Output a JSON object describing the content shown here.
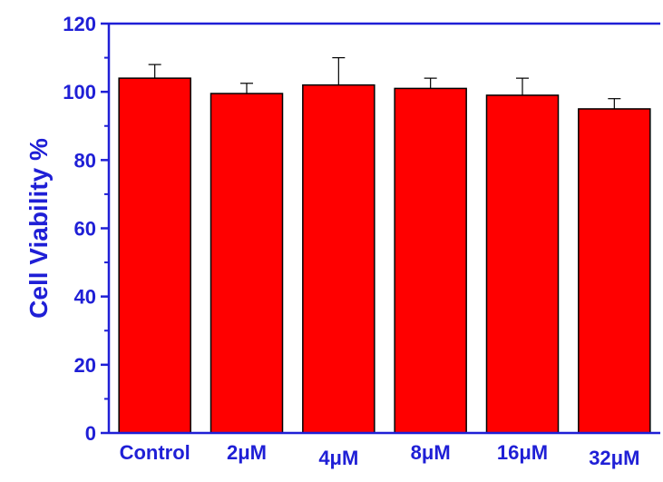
{
  "chart_data": {
    "type": "bar",
    "categories": [
      "Control",
      "2μM",
      "4μM",
      "8μM",
      "16μM",
      "32μM"
    ],
    "values": [
      104,
      99.5,
      102,
      101,
      99,
      95
    ],
    "errors": [
      4,
      3,
      8,
      3,
      5,
      3
    ],
    "title": "",
    "xlabel": "",
    "ylabel": "Cell Viability %",
    "ylim": [
      0,
      120
    ],
    "yticks": [
      0,
      20,
      40,
      60,
      80,
      100,
      120
    ],
    "grid": false,
    "legend": "none",
    "colors": {
      "bar_fill": "#ff0000",
      "bar_stroke": "#000000",
      "axis": "#1f1fd6",
      "text": "#1f1fd6",
      "error_bar": "#000000"
    }
  }
}
